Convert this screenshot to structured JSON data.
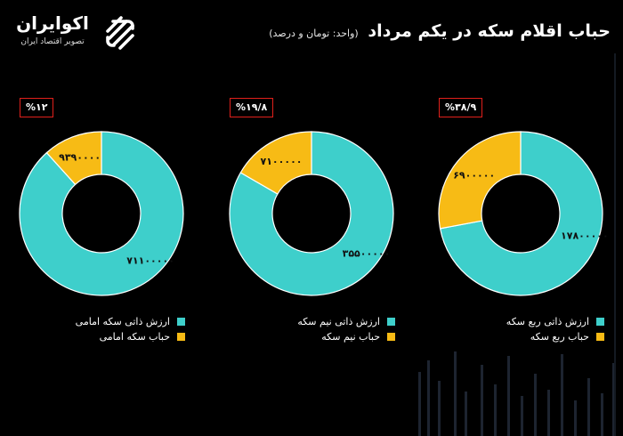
{
  "header": {
    "title": "حباب اقلام سکه در یکم مرداد",
    "unit_note": "(واحد: تومان و درصد)"
  },
  "logo": {
    "name": "اکوایران",
    "tagline": "تصویر اقتصاد ایران",
    "icon": "ecoiran-logo-icon"
  },
  "colors": {
    "intrinsic": "#3ECFCB",
    "bubble": "#F7BB15",
    "box_border": "#E0201B",
    "background": "#000000"
  },
  "chart_data": [
    {
      "type": "pie",
      "subtype": "donut",
      "bubble_percent_label": "%۱۲",
      "slices": [
        {
          "legend": "ارزش ذاتی سکه امامی",
          "value": 71100000,
          "value_label": "۷۱۱۰۰۰۰۰"
        },
        {
          "legend": "حباب سکه امامی",
          "value": 9390000,
          "value_label": "۹۳۹۰۰۰۰"
        }
      ]
    },
    {
      "type": "pie",
      "subtype": "donut",
      "bubble_percent_label": "%۱۹/۸",
      "slices": [
        {
          "legend": "ارزش ذاتی نیم سکه",
          "value": 35500000,
          "value_label": "۳۵۵۰۰۰۰۰"
        },
        {
          "legend": "حباب نیم سکه",
          "value": 7100000,
          "value_label": "۷۱۰۰۰۰۰"
        }
      ]
    },
    {
      "type": "pie",
      "subtype": "donut",
      "bubble_percent_label": "%۳۸/۹",
      "slices": [
        {
          "legend": "ارزش ذاتی ربع سکه",
          "value": 17800000,
          "value_label": "۱۷۸۰۰۰۰۰"
        },
        {
          "legend": "حباب ربع سکه",
          "value": 6900000,
          "value_label": "۶۹۰۰۰۰۰"
        }
      ]
    }
  ]
}
